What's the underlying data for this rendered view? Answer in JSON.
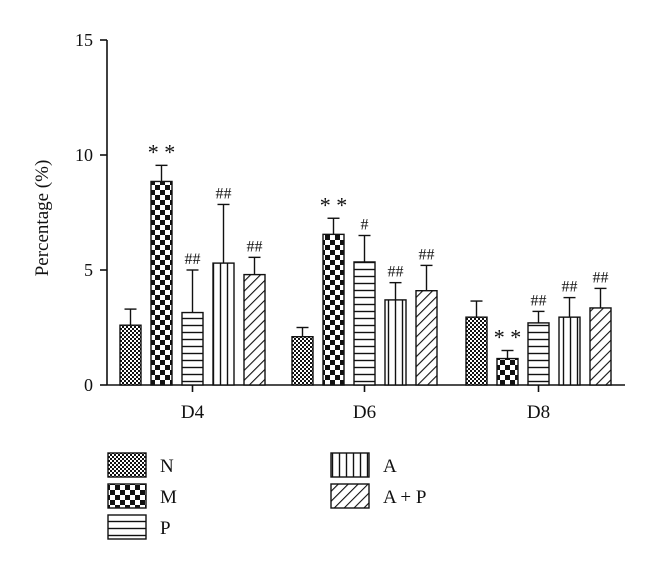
{
  "chart_data": {
    "type": "bar",
    "title": "",
    "xlabel": "",
    "ylabel": "Percentage (%)",
    "ylim": [
      0,
      15
    ],
    "yticks": [
      "0",
      "5",
      "10",
      "15"
    ],
    "categories": [
      "D4",
      "D6",
      "D8"
    ],
    "grid": false,
    "legend_position": "bottom",
    "series": [
      {
        "name": "N",
        "pattern": "checker-fine",
        "values": [
          2.6,
          2.1,
          2.95
        ],
        "errors": [
          0.7,
          0.4,
          0.7
        ],
        "annotations": [
          "",
          "",
          ""
        ]
      },
      {
        "name": "M",
        "pattern": "checker-coarse",
        "values": [
          8.85,
          6.55,
          1.15
        ],
        "errors": [
          0.7,
          0.7,
          0.35
        ],
        "annotations": [
          "**",
          "**",
          "**"
        ]
      },
      {
        "name": "P",
        "pattern": "horizontal",
        "values": [
          3.15,
          5.35,
          2.7
        ],
        "errors": [
          1.85,
          1.15,
          0.5
        ],
        "annotations": [
          "##",
          "#",
          "##"
        ]
      },
      {
        "name": "A",
        "pattern": "vertical",
        "values": [
          5.3,
          3.7,
          2.95
        ],
        "errors": [
          2.55,
          0.75,
          0.85
        ],
        "annotations": [
          "##",
          "##",
          "##"
        ]
      },
      {
        "name": "A + P",
        "pattern": "diagonal",
        "values": [
          4.8,
          4.1,
          3.35
        ],
        "errors": [
          0.75,
          1.1,
          0.85
        ],
        "annotations": [
          "##",
          "##",
          "##"
        ]
      }
    ]
  }
}
